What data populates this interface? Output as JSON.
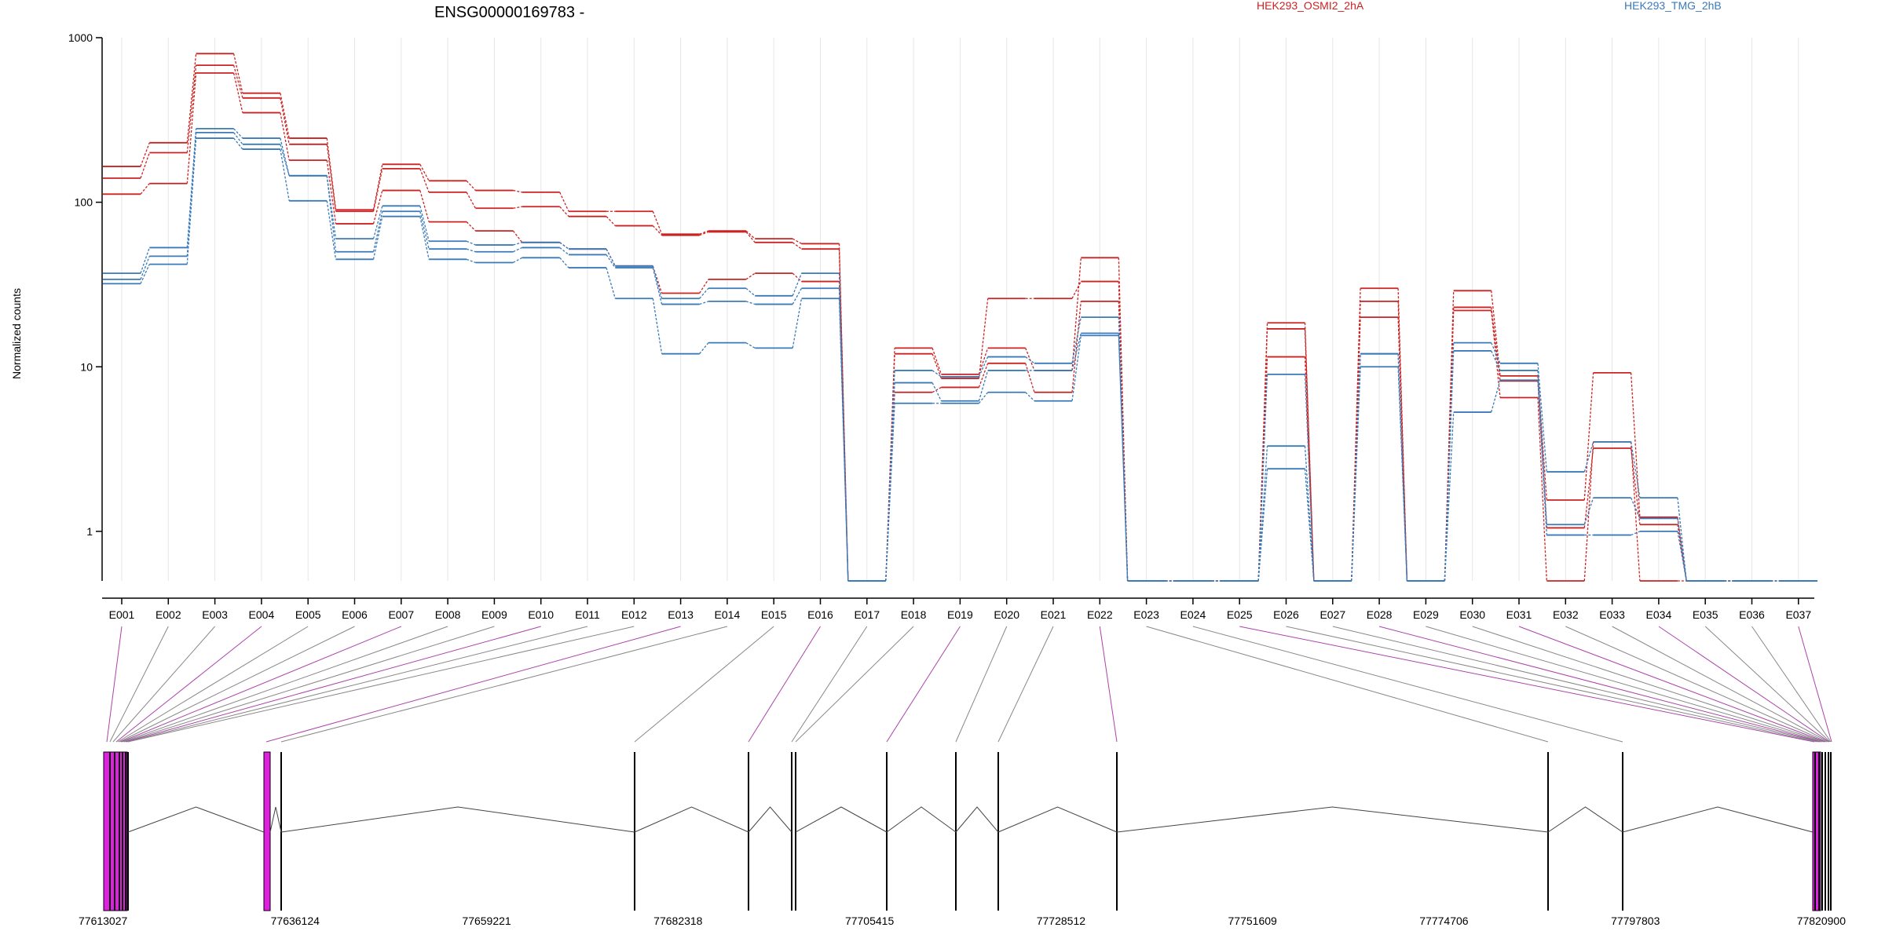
{
  "chart_data": {
    "type": "line",
    "title": "ENSG00000169783 -",
    "ylabel": "Normalized counts",
    "yscale": "log",
    "ylim": [
      0.5,
      1000
    ],
    "yticks": [
      "1000",
      "100",
      "10",
      "1"
    ],
    "yticks_values": [
      1000,
      100,
      10,
      1
    ],
    "categories": [
      "E001",
      "E002",
      "E003",
      "E004",
      "E005",
      "E006",
      "E007",
      "E008",
      "E009",
      "E010",
      "E011",
      "E012",
      "E013",
      "E014",
      "E015",
      "E016",
      "E017",
      "E018",
      "E019",
      "E020",
      "E021",
      "E022",
      "E023",
      "E024",
      "E025",
      "E026",
      "E027",
      "E028",
      "E029",
      "E030",
      "E031",
      "E032",
      "E033",
      "E034",
      "E035",
      "E036",
      "E037"
    ],
    "legend": [
      {
        "label": "HEK293_OSMI2_2hA",
        "color": "#cc2222"
      },
      {
        "label": "HEK293_TMG_2hB",
        "color": "#3a7ab8"
      }
    ],
    "series": [
      {
        "group": "red",
        "values": [
          165,
          230,
          800,
          460,
          245,
          90,
          170,
          135,
          118,
          115,
          88,
          88,
          64,
          67,
          60,
          56,
          0.5,
          13,
          9,
          13,
          9.5,
          46,
          0.5,
          0.5,
          0.5,
          18.5,
          0.5,
          30,
          0.5,
          29,
          8.8,
          1.55,
          9.2,
          1.22,
          0.5,
          0.5,
          0.5
        ]
      },
      {
        "group": "red",
        "values": [
          140,
          200,
          680,
          430,
          225,
          88,
          160,
          115,
          92,
          94,
          82,
          72,
          63,
          66,
          57,
          52,
          0.5,
          12,
          8.5,
          26,
          26,
          33,
          0.5,
          0.5,
          0.5,
          17,
          0.5,
          25,
          0.5,
          23,
          8.2,
          1.05,
          3.2,
          1.1,
          0.5,
          0.5,
          0.5
        ]
      },
      {
        "group": "red",
        "values": [
          112,
          130,
          610,
          350,
          180,
          74,
          118,
          76,
          67,
          57,
          52,
          41,
          28,
          34,
          37,
          33,
          0.5,
          7,
          7.5,
          10.5,
          7,
          25,
          0.5,
          0.5,
          0.5,
          11.5,
          0.5,
          20,
          0.5,
          22,
          6.5,
          0.5,
          3.5,
          0.5,
          0.5,
          0.5,
          0.5
        ]
      },
      {
        "group": "blue",
        "values": [
          37,
          53,
          280,
          245,
          145,
          60,
          95,
          58,
          55,
          57,
          52,
          41,
          26,
          30,
          27,
          37,
          0.5,
          9.5,
          8.7,
          11.5,
          10.5,
          20,
          0.5,
          0.5,
          0.5,
          9,
          0.5,
          12,
          0.5,
          14,
          10.5,
          2.3,
          3.5,
          1.6,
          0.5,
          0.5,
          0.5
        ]
      },
      {
        "group": "blue",
        "values": [
          34,
          47,
          265,
          225,
          145,
          50,
          88,
          52,
          50,
          53,
          48,
          40,
          24,
          25,
          24,
          30,
          0.5,
          8,
          6.2,
          9.5,
          9.5,
          16,
          0.5,
          0.5,
          0.5,
          3.3,
          0.5,
          12,
          0.5,
          12.5,
          9.5,
          1.1,
          1.6,
          1.2,
          0.5,
          0.5,
          0.5
        ]
      },
      {
        "group": "blue",
        "values": [
          32,
          42,
          245,
          210,
          102,
          45,
          82,
          45,
          43,
          46,
          40,
          26,
          12,
          14,
          13,
          26,
          0.5,
          6,
          6,
          7,
          6.2,
          15.5,
          0.5,
          0.5,
          0.5,
          2.4,
          0.5,
          10,
          0.5,
          5.3,
          8.3,
          0.95,
          0.95,
          1,
          0.5,
          0.5,
          0.5
        ]
      }
    ]
  },
  "genome": {
    "positions": [
      "77613027",
      "77636124",
      "77659221",
      "77682318",
      "77705415",
      "77728512",
      "77751609",
      "77774706",
      "77797803",
      "77820900"
    ],
    "start": 77613027,
    "end": 77820900
  }
}
